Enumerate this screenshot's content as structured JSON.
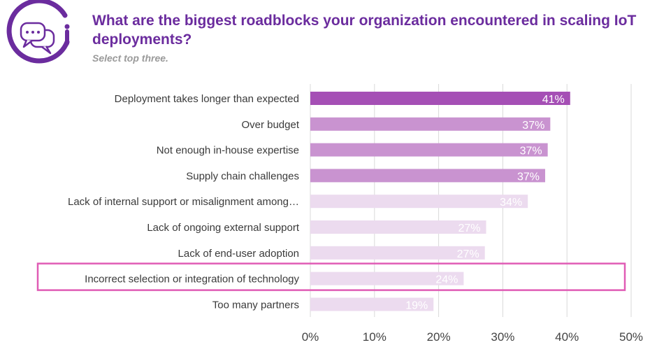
{
  "header": {
    "title": "What are the biggest roadblocks your organization encountered in scaling IoT deployments?",
    "subtitle": "Select top three.",
    "logo_icon": "speech-bubbles-icon"
  },
  "colors": {
    "accent": "#6b2c9e",
    "highlight_box": "#e05cb5",
    "gridline": "#d9d9d9"
  },
  "chart_data": {
    "type": "bar",
    "orientation": "horizontal",
    "title": "What are the biggest roadblocks your organization encountered in scaling IoT deployments?",
    "subtitle": "Select top three.",
    "categories": [
      "Deployment takes longer than expected",
      "Over budget",
      "Not enough in-house expertise",
      "Supply chain challenges",
      "Lack of internal support or misalignment among…",
      "Lack of ongoing external support",
      "Lack of end-user adoption",
      "Incorrect selection or integration of technology",
      "Too many partners"
    ],
    "values": [
      40.5,
      37.4,
      37.0,
      36.6,
      33.9,
      27.4,
      27.2,
      23.9,
      19.2
    ],
    "value_labels": [
      "41%",
      "37%",
      "37%",
      "37%",
      "34%",
      "27%",
      "27%",
      "24%",
      "19%"
    ],
    "bar_colors": [
      "#a54fb5",
      "#c993d0",
      "#c993d0",
      "#c993d0",
      "#ecdbef",
      "#ecdbef",
      "#ecdbef",
      "#ecdbef",
      "#ecdbef"
    ],
    "highlighted_category": "Incorrect selection or integration of technology",
    "xlim": [
      0,
      50
    ],
    "xticks": [
      0,
      10,
      20,
      30,
      40,
      50
    ],
    "xtick_labels": [
      "0%",
      "10%",
      "20%",
      "30%",
      "40%",
      "50%"
    ],
    "grid": true,
    "xlabel": "",
    "ylabel": ""
  }
}
